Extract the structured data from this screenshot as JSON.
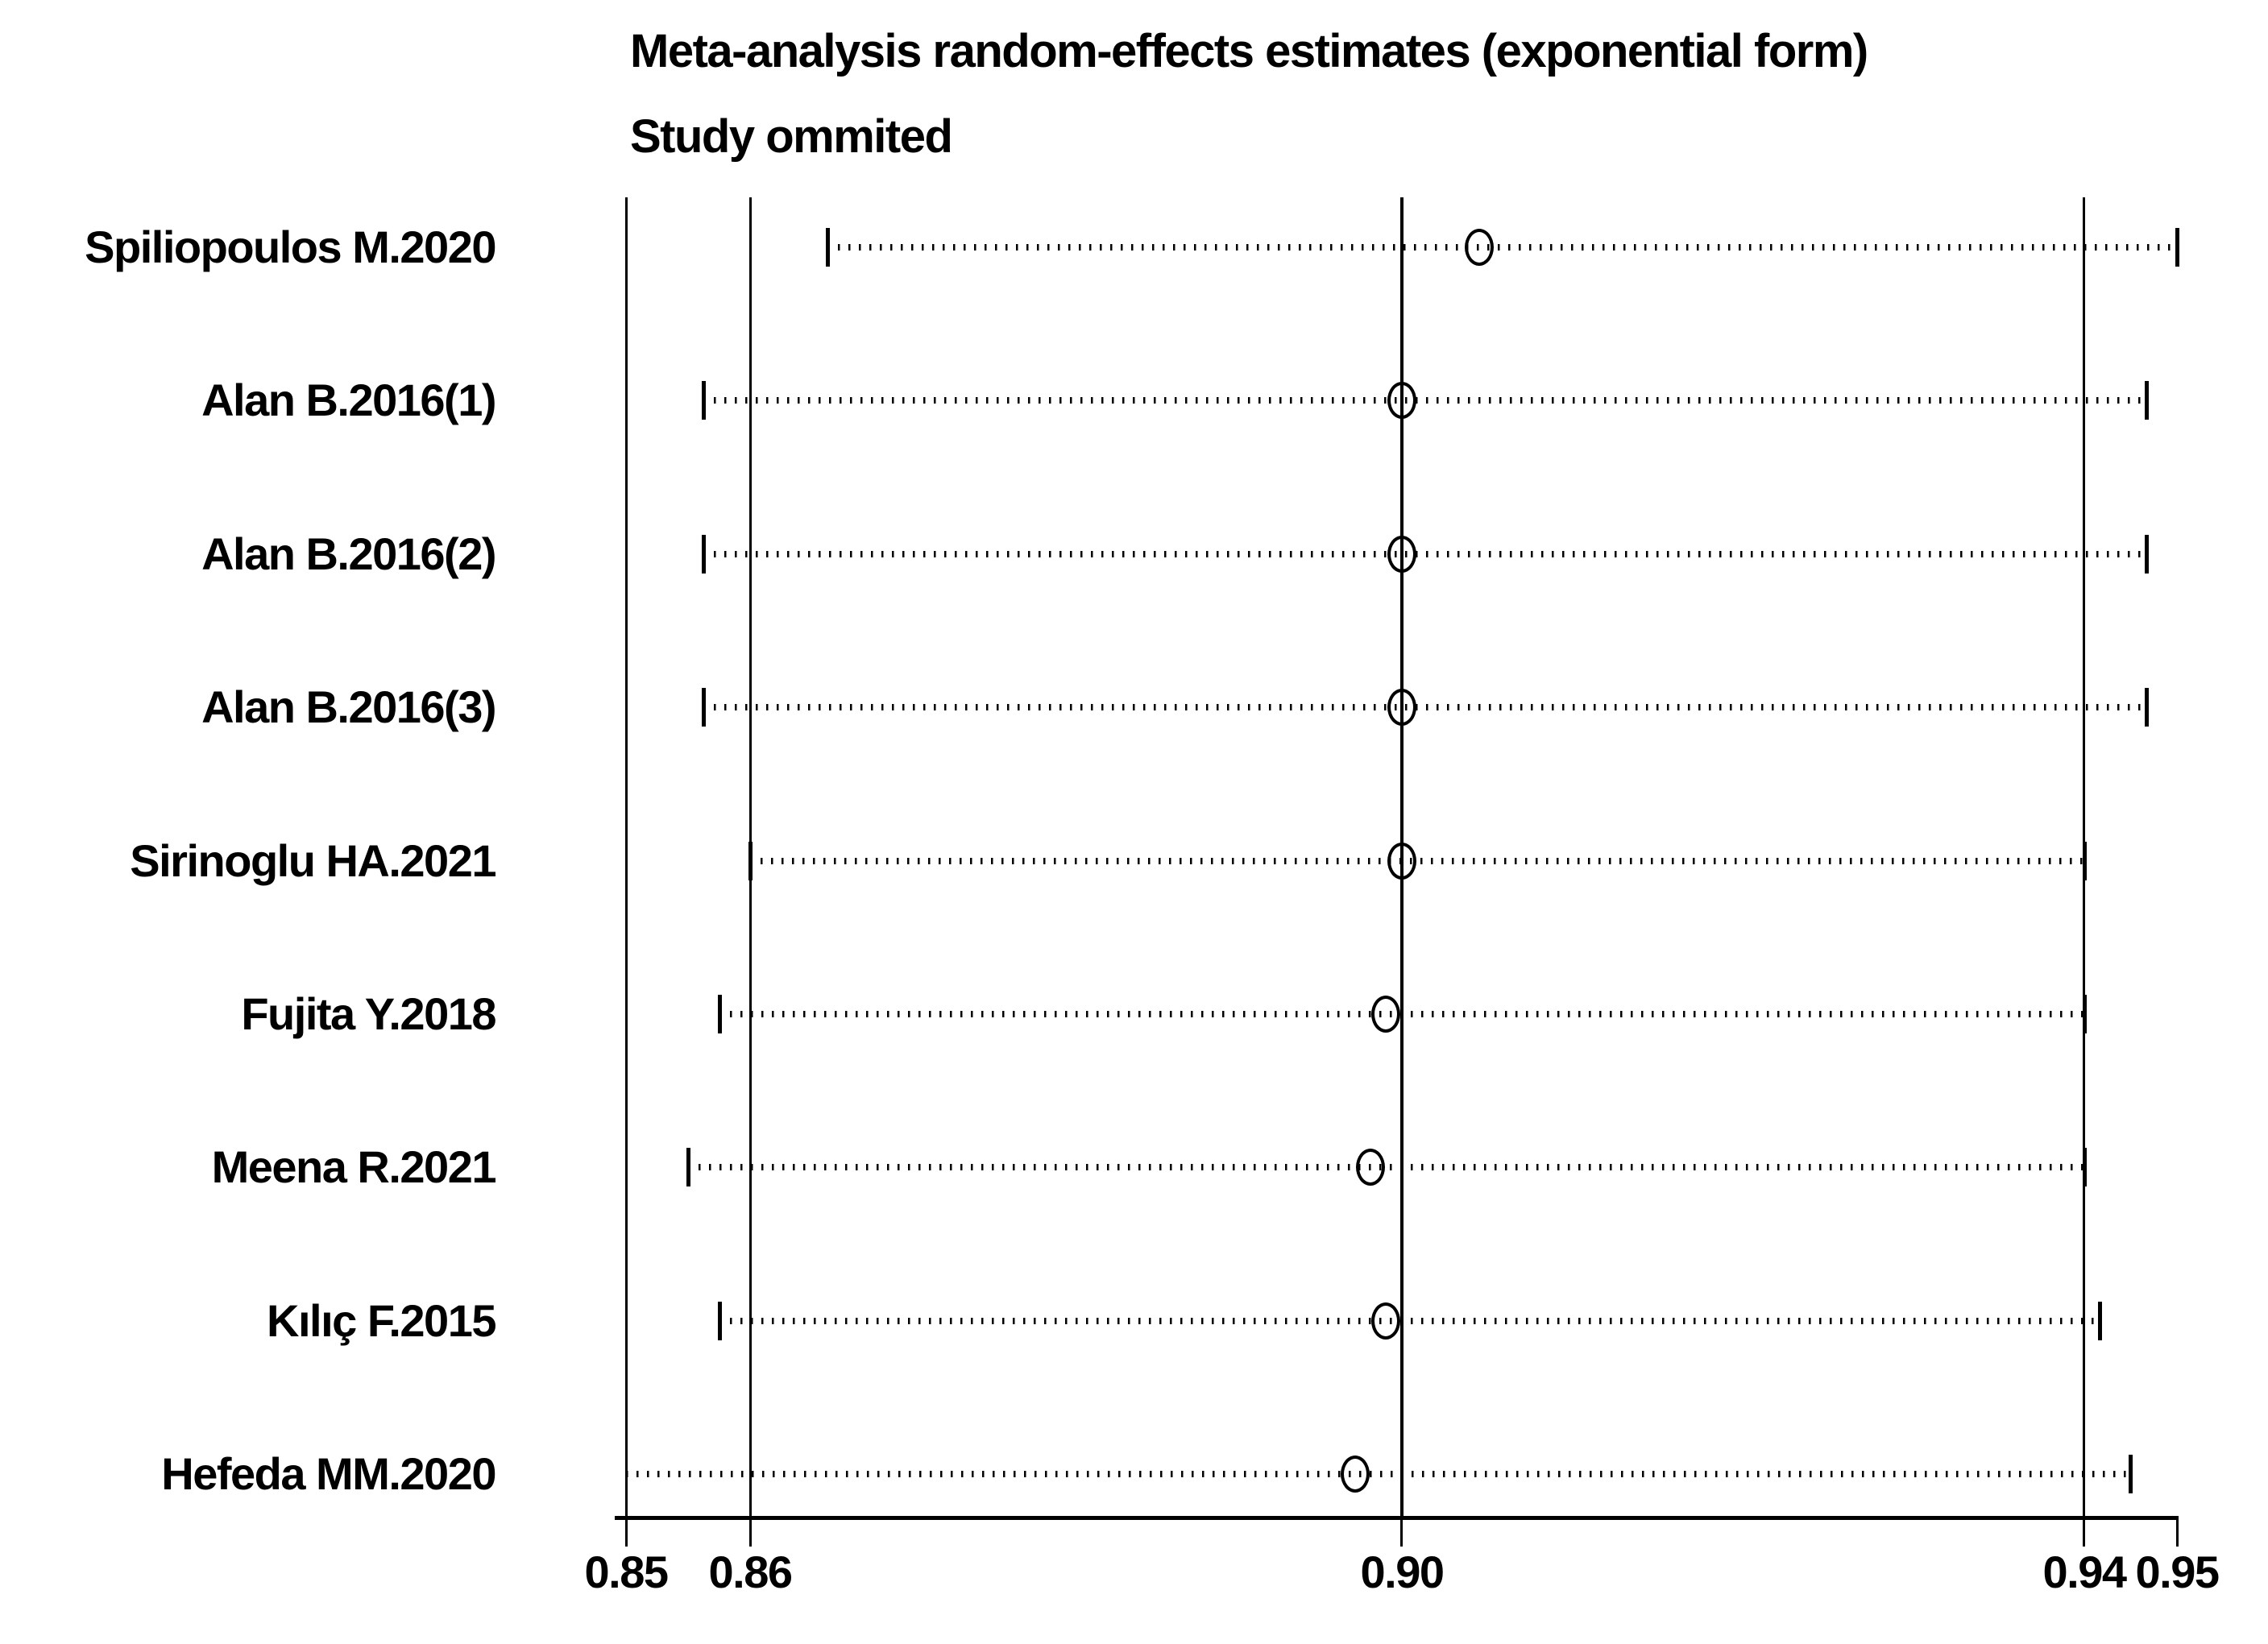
{
  "title": {
    "line1": "Meta-analysis random-effects estimates (exponential form)",
    "line2": "Study ommited"
  },
  "colors": {
    "foreground": "#000000",
    "background": "#ffffff"
  },
  "chart_data": {
    "type": "scatter",
    "subtype": "meta-analysis-leave-one-out-sensitivity-forest",
    "title": "Meta-analysis random-effects estimates (exponential form)",
    "subtitle": "Study ommited",
    "xlabel": "",
    "ylabel": "",
    "grid": false,
    "legend": false,
    "x_axis": {
      "min": 0.85,
      "max": 0.95,
      "scale": "linear",
      "ticks": [
        {
          "value": 0.85,
          "label": "0.85"
        },
        {
          "value": 0.858,
          "label": "0.86"
        },
        {
          "value": 0.9,
          "label": "0.90"
        },
        {
          "value": 0.944,
          "label": "0.94"
        },
        {
          "value": 0.95,
          "label": "0.95"
        }
      ]
    },
    "reference_lines": [
      {
        "value": 0.858,
        "role": "pooled-lower-ci"
      },
      {
        "value": 0.9,
        "role": "pooled-estimate"
      },
      {
        "value": 0.944,
        "role": "pooled-upper-ci"
      }
    ],
    "studies": [
      {
        "label": "Spiliopoulos M.2020",
        "lower": 0.863,
        "estimate": 0.905,
        "upper": 0.95,
        "lower_clipped": false
      },
      {
        "label": "Alan B.2016(1)",
        "lower": 0.855,
        "estimate": 0.9,
        "upper": 0.948,
        "lower_clipped": false
      },
      {
        "label": "Alan B.2016(2)",
        "lower": 0.855,
        "estimate": 0.9,
        "upper": 0.948,
        "lower_clipped": false
      },
      {
        "label": "Alan B.2016(3)",
        "lower": 0.855,
        "estimate": 0.9,
        "upper": 0.948,
        "lower_clipped": false
      },
      {
        "label": "Sirinoglu HA.2021",
        "lower": 0.858,
        "estimate": 0.9,
        "upper": 0.944,
        "lower_clipped": false
      },
      {
        "label": "Fujita Y.2018",
        "lower": 0.856,
        "estimate": 0.899,
        "upper": 0.944,
        "lower_clipped": false
      },
      {
        "label": "Meena R.2021",
        "lower": 0.854,
        "estimate": 0.898,
        "upper": 0.944,
        "lower_clipped": false
      },
      {
        "label": "Kılıç F.2015",
        "lower": 0.856,
        "estimate": 0.899,
        "upper": 0.945,
        "lower_clipped": false
      },
      {
        "label": "Hefeda MM.2020",
        "lower": 0.85,
        "estimate": 0.897,
        "upper": 0.947,
        "lower_clipped": true
      }
    ]
  }
}
